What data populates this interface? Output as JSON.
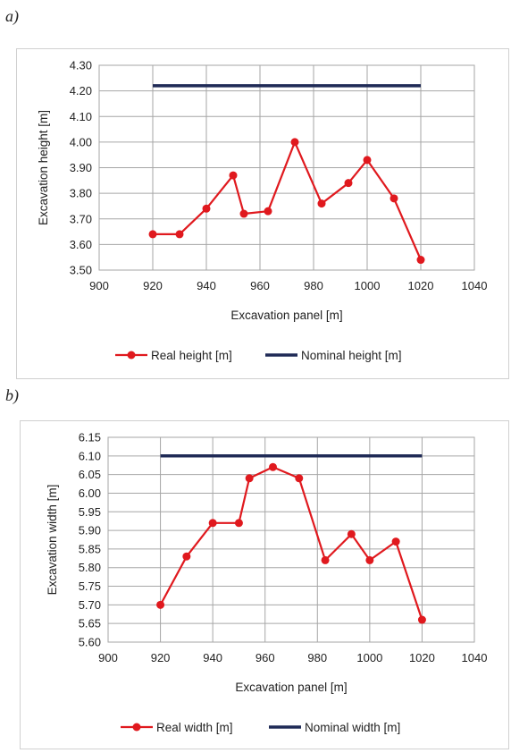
{
  "panels": [
    {
      "label": "a)"
    },
    {
      "label": "b)"
    }
  ],
  "chart_data": [
    {
      "type": "line",
      "title": "",
      "xlabel": "Excavation panel [m]",
      "ylabel": "Excavation height [m]",
      "xlim": [
        900,
        1040
      ],
      "ylim": [
        3.5,
        4.3
      ],
      "xticks": [
        900,
        920,
        940,
        960,
        980,
        1000,
        1020,
        1040
      ],
      "yticks": [
        3.5,
        3.6,
        3.7,
        3.8,
        3.9,
        4.0,
        4.1,
        4.2,
        4.3
      ],
      "yticklabels": [
        "3.50",
        "3.60",
        "3.70",
        "3.80",
        "3.90",
        "4.00",
        "4.10",
        "4.20",
        "4.30"
      ],
      "grid": true,
      "legend": "bottom",
      "series": [
        {
          "name": "Real height [m]",
          "color": "#e0191e",
          "marker": "circle",
          "x": [
            920,
            930,
            940,
            950,
            954,
            963,
            973,
            983,
            993,
            1000,
            1010,
            1020
          ],
          "y": [
            3.64,
            3.64,
            3.74,
            3.87,
            3.72,
            3.73,
            4.0,
            3.76,
            3.84,
            3.93,
            3.78,
            3.54
          ]
        },
        {
          "name": "Nominal height [m]",
          "color": "#1f2a56",
          "marker": "none",
          "x": [
            920,
            1020
          ],
          "y": [
            4.22,
            4.22
          ]
        }
      ]
    },
    {
      "type": "line",
      "title": "",
      "xlabel": "Excavation panel [m]",
      "ylabel": "Excavation width [m]",
      "xlim": [
        900,
        1040
      ],
      "ylim": [
        5.6,
        6.15
      ],
      "xticks": [
        900,
        920,
        940,
        960,
        980,
        1000,
        1020,
        1040
      ],
      "yticks": [
        5.6,
        5.65,
        5.7,
        5.75,
        5.8,
        5.85,
        5.9,
        5.95,
        6.0,
        6.05,
        6.1,
        6.15
      ],
      "yticklabels": [
        "5.60",
        "5.65",
        "5.70",
        "5.75",
        "5.80",
        "5.85",
        "5.90",
        "5.95",
        "6.00",
        "6.05",
        "6.10",
        "6.15"
      ],
      "grid": true,
      "legend": "bottom",
      "series": [
        {
          "name": "Real width [m]",
          "color": "#e0191e",
          "marker": "circle",
          "x": [
            920,
            930,
            940,
            950,
            954,
            963,
            973,
            983,
            993,
            1000,
            1010,
            1020
          ],
          "y": [
            5.7,
            5.83,
            5.92,
            5.92,
            6.04,
            6.07,
            6.04,
            5.82,
            5.89,
            5.82,
            5.87,
            5.66
          ]
        },
        {
          "name": "Nominal width [m]",
          "color": "#1f2a56",
          "marker": "none",
          "x": [
            920,
            1020
          ],
          "y": [
            6.1,
            6.1
          ]
        }
      ]
    }
  ]
}
